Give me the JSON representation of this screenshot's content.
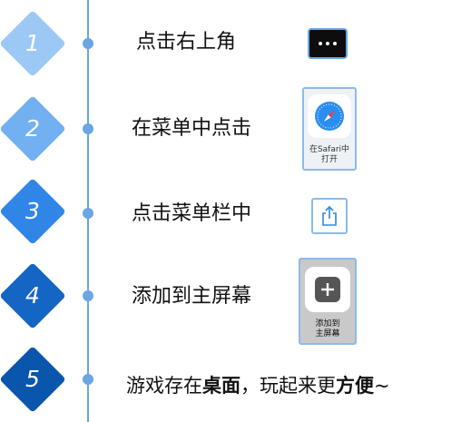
{
  "steps": [
    {
      "number": "1",
      "label": "点击右上角"
    },
    {
      "number": "2",
      "label": "在菜单中点击",
      "card_caption_line1": "在Safari中",
      "card_caption_line2": "打开"
    },
    {
      "number": "3",
      "label": "点击菜单栏中"
    },
    {
      "number": "4",
      "label": "添加到主屏幕",
      "card_caption_line1": "添加到",
      "card_caption_line2": "主屏幕"
    },
    {
      "number": "5",
      "label_part1": "游戏存在",
      "label_bold1": "桌面",
      "label_part2": "，玩起来更",
      "label_bold2": "方便",
      "label_part3": "~"
    }
  ],
  "colors": {
    "step1": "#9cc8f6",
    "step2": "#72b0f2",
    "step3": "#2f86e6",
    "step4": "#1565c4",
    "step5": "#0b56ad",
    "timeline": "#6aa6e3"
  },
  "icons": {
    "step1": "more-dots-icon",
    "step2": "safari-compass-icon",
    "step3": "share-icon",
    "step4": "add-plus-icon"
  }
}
